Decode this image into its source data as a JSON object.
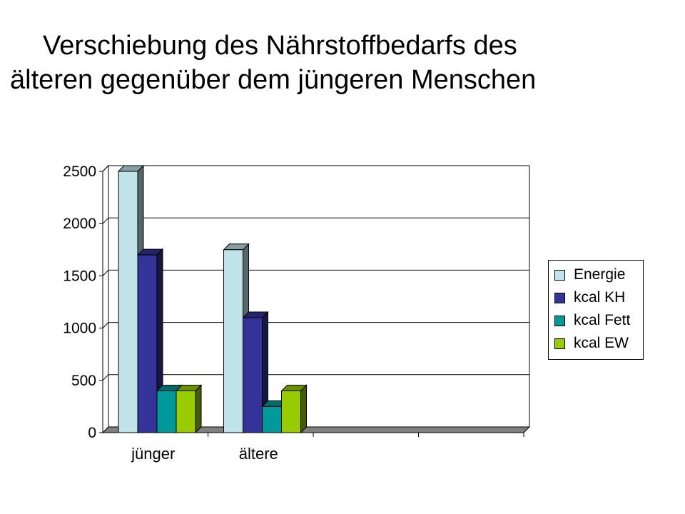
{
  "title": {
    "line1": "Verschiebung des Nährstoffbedarfs des",
    "line2": "älteren gegenüber dem jüngeren Menschen"
  },
  "chart_data": {
    "type": "bar",
    "categories": [
      "jünger",
      "ältere",
      "",
      ""
    ],
    "series": [
      {
        "name": "Energie",
        "values": [
          2500,
          1750,
          null,
          null
        ],
        "color": "#bfe3e8"
      },
      {
        "name": "kcal KH",
        "values": [
          1700,
          1100,
          null,
          null
        ],
        "color": "#333399"
      },
      {
        "name": "kcal Fett",
        "values": [
          400,
          250,
          null,
          null
        ],
        "color": "#009999"
      },
      {
        "name": "kcal EW",
        "values": [
          400,
          400,
          null,
          null
        ],
        "color": "#99cc00"
      }
    ],
    "yticks": [
      0,
      500,
      1000,
      1500,
      2000,
      2500
    ],
    "ylim": [
      0,
      2500
    ],
    "grid": true,
    "legend": "right",
    "title": "",
    "xlabel": "",
    "ylabel": ""
  }
}
